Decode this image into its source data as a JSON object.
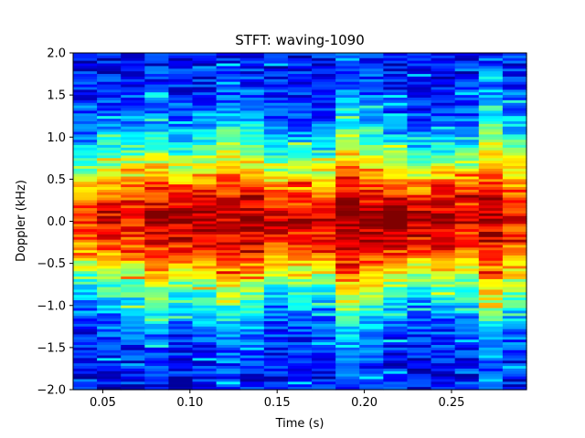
{
  "chart_data": {
    "type": "heatmap",
    "title": "STFT: waving-1090",
    "xlabel": "Time (s)",
    "ylabel": "Doppler (kHz)",
    "xlim": [
      0.033,
      0.293
    ],
    "ylim": [
      -2.0,
      2.0
    ],
    "xticks": [
      {
        "value": 0.05,
        "label": "0.05"
      },
      {
        "value": 0.1,
        "label": "0.10"
      },
      {
        "value": 0.15,
        "label": "0.15"
      },
      {
        "value": 0.2,
        "label": "0.20"
      },
      {
        "value": 0.25,
        "label": "0.25"
      }
    ],
    "yticks": [
      {
        "value": 2.0,
        "label": "2.0"
      },
      {
        "value": 1.5,
        "label": "1.5"
      },
      {
        "value": 1.0,
        "label": "1.0"
      },
      {
        "value": 0.5,
        "label": "0.5"
      },
      {
        "value": 0.0,
        "label": "0.0"
      },
      {
        "value": -0.5,
        "label": "−0.5"
      },
      {
        "value": -1.0,
        "label": "−1.0"
      },
      {
        "value": -1.5,
        "label": "−1.5"
      },
      {
        "value": -2.0,
        "label": "−2.0"
      }
    ],
    "colormap": "jet",
    "time_bins": 19,
    "doppler_bins": 128,
    "column_peak_intensity": [
      0.78,
      0.86,
      0.82,
      0.9,
      0.92,
      0.95,
      0.88,
      0.93,
      0.87,
      0.84,
      0.86,
      0.98,
      0.92,
      0.95,
      0.9,
      0.93,
      0.85,
      0.9,
      0.82
    ],
    "column_spread_khz": [
      0.55,
      0.6,
      0.65,
      0.7,
      0.6,
      0.62,
      0.75,
      0.7,
      0.55,
      0.6,
      0.58,
      0.8,
      0.72,
      0.6,
      0.55,
      0.58,
      0.62,
      0.85,
      0.7
    ],
    "grid": false
  }
}
